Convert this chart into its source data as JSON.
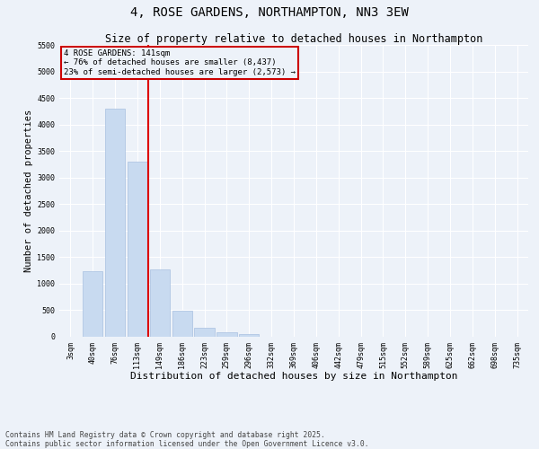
{
  "title": "4, ROSE GARDENS, NORTHAMPTON, NN3 3EW",
  "subtitle": "Size of property relative to detached houses in Northampton",
  "xlabel": "Distribution of detached houses by size in Northampton",
  "ylabel": "Number of detached properties",
  "categories": [
    "3sqm",
    "40sqm",
    "76sqm",
    "113sqm",
    "149sqm",
    "186sqm",
    "223sqm",
    "259sqm",
    "296sqm",
    "332sqm",
    "369sqm",
    "406sqm",
    "442sqm",
    "479sqm",
    "515sqm",
    "552sqm",
    "589sqm",
    "625sqm",
    "662sqm",
    "698sqm",
    "735sqm"
  ],
  "values": [
    0,
    1230,
    4300,
    3300,
    1270,
    490,
    170,
    90,
    50,
    0,
    0,
    0,
    0,
    0,
    0,
    0,
    0,
    0,
    0,
    0,
    0
  ],
  "bar_color": "#c8daf0",
  "bar_edgecolor": "#a8c0e0",
  "vline_index": 4,
  "vline_color": "#dd0000",
  "annotation_line1": "4 ROSE GARDENS: 141sqm",
  "annotation_line2": "← 76% of detached houses are smaller (8,437)",
  "annotation_line3": "23% of semi-detached houses are larger (2,573) →",
  "annotation_box_edgecolor": "#cc0000",
  "ylim": [
    0,
    5500
  ],
  "yticks": [
    0,
    500,
    1000,
    1500,
    2000,
    2500,
    3000,
    3500,
    4000,
    4500,
    5000,
    5500
  ],
  "bg_color": "#edf2f9",
  "grid_color": "#ffffff",
  "footnote1": "Contains HM Land Registry data © Crown copyright and database right 2025.",
  "footnote2": "Contains public sector information licensed under the Open Government Licence v3.0.",
  "title_fontsize": 10,
  "subtitle_fontsize": 8.5,
  "xlabel_fontsize": 8,
  "ylabel_fontsize": 7.5,
  "tick_fontsize": 6,
  "annotation_fontsize": 6.5,
  "footnote_fontsize": 5.8
}
